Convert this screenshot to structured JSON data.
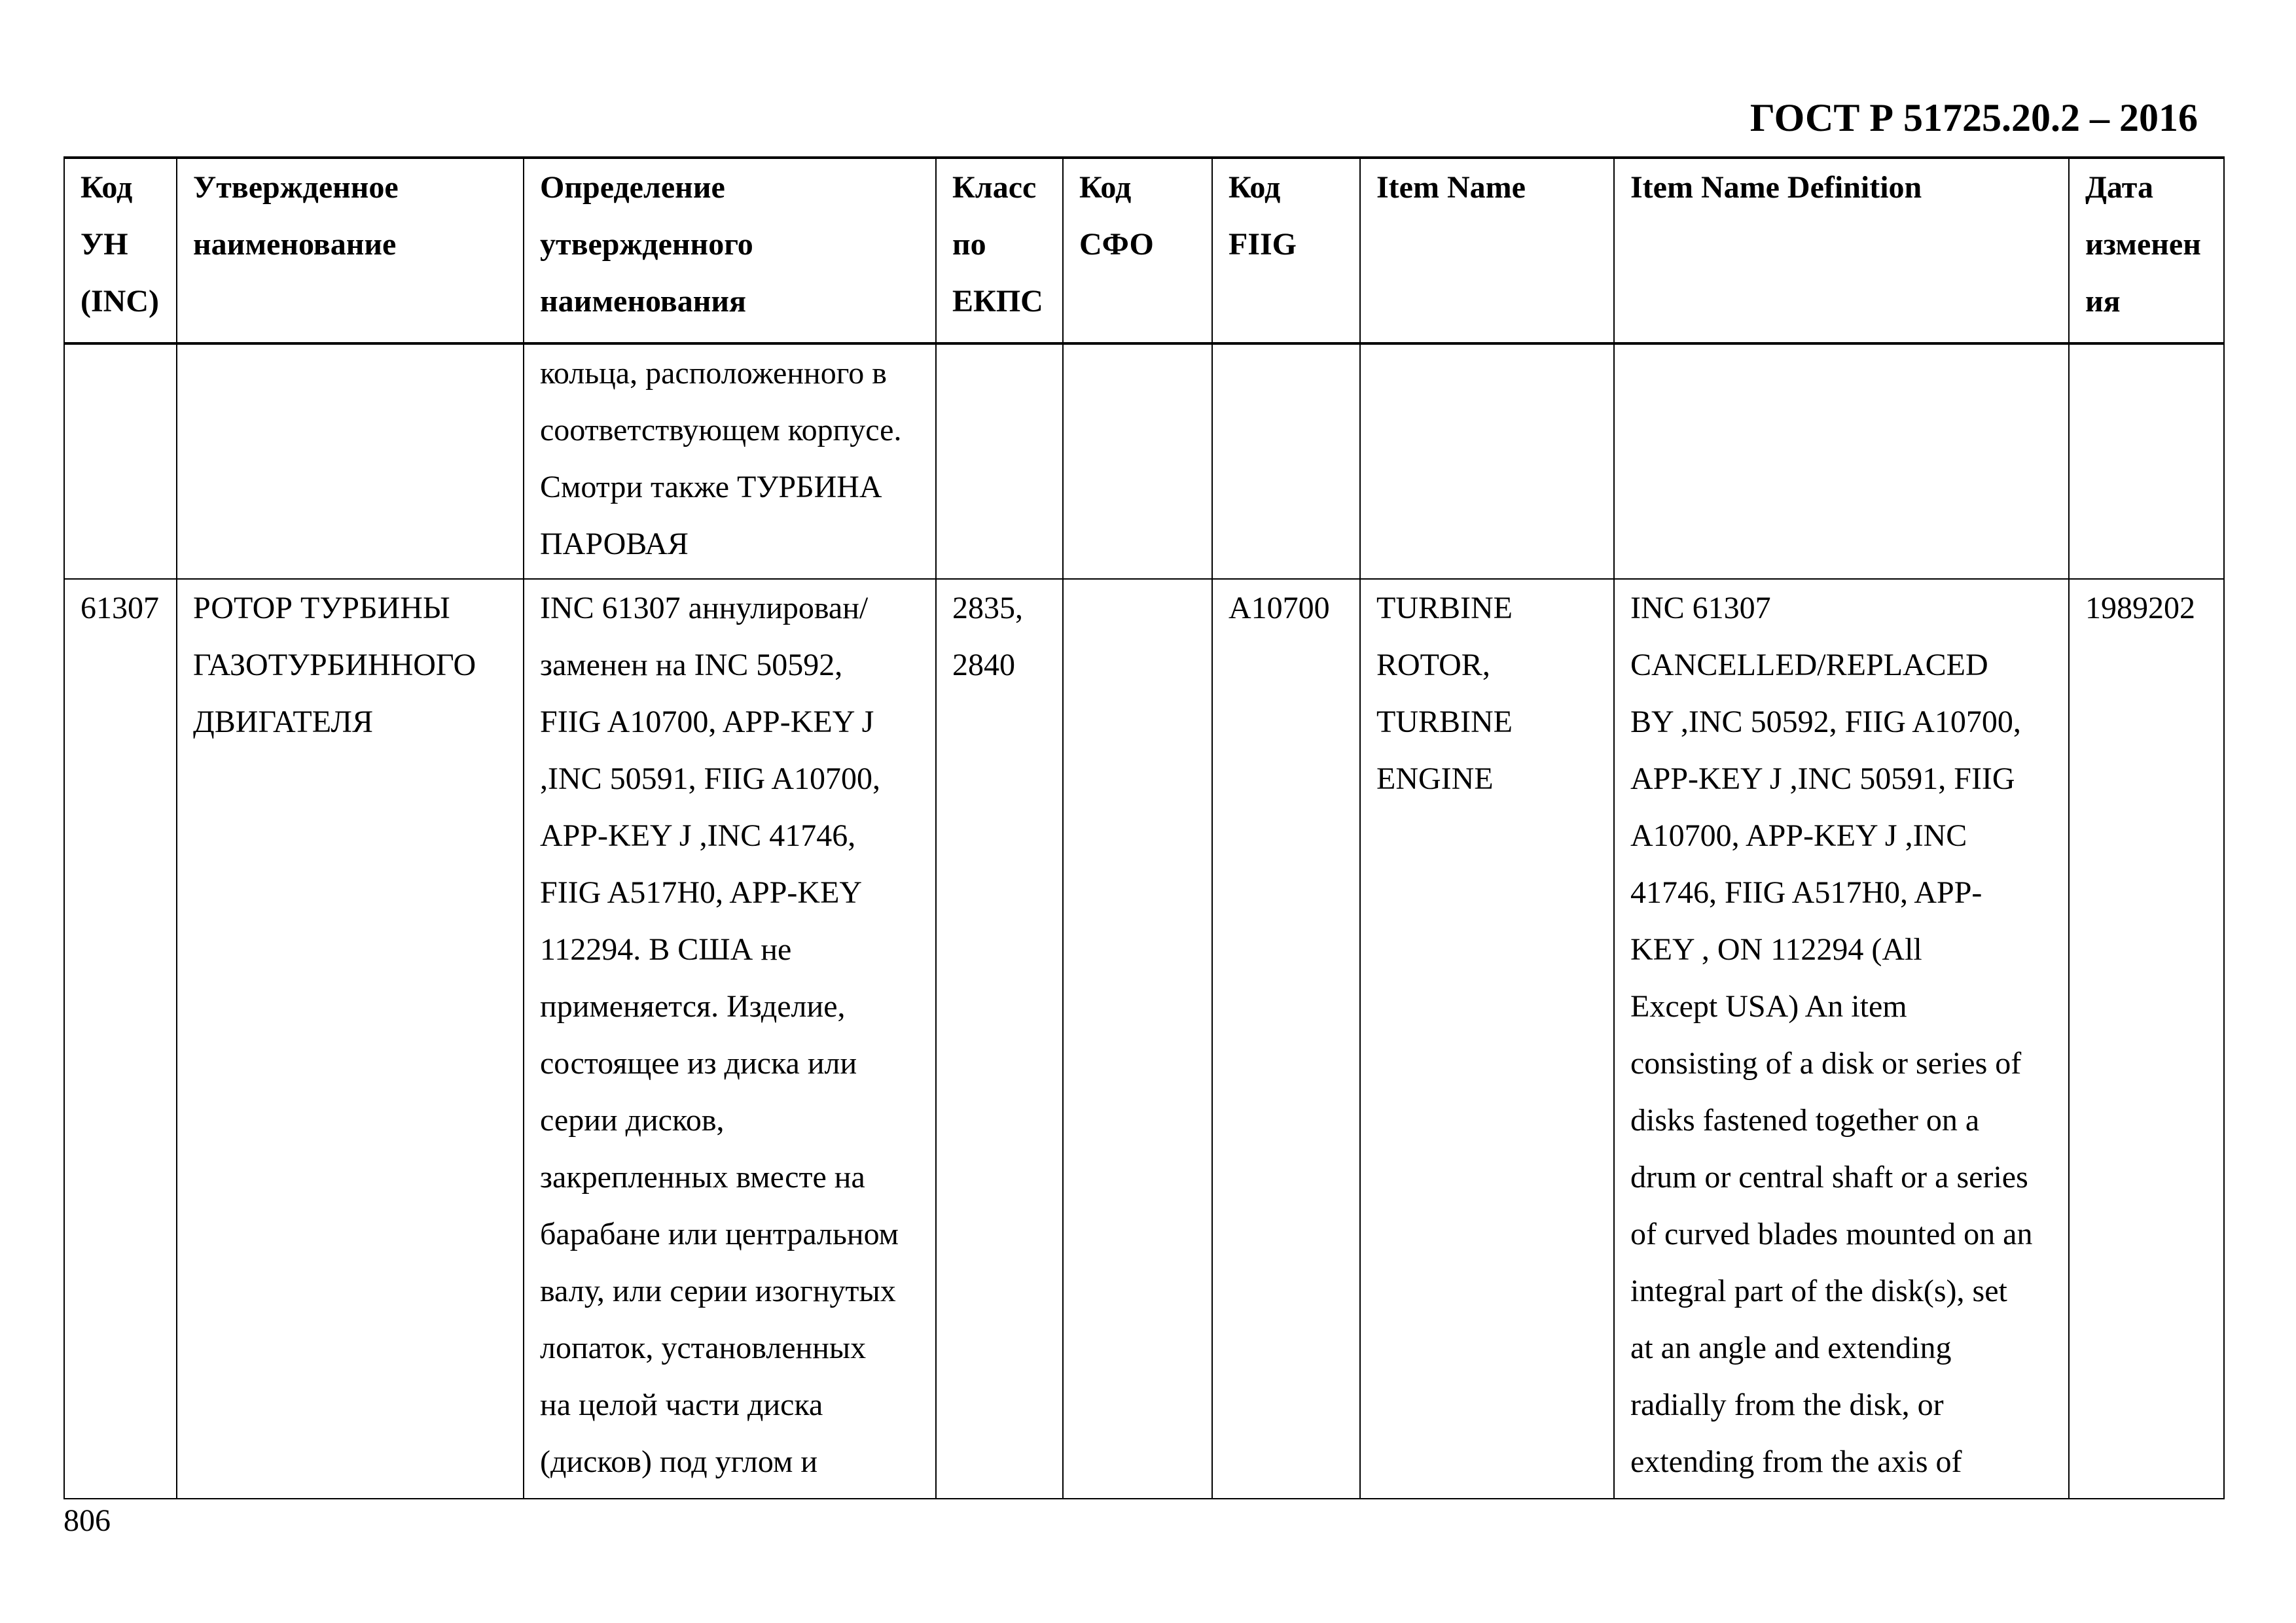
{
  "document": {
    "code": "ГОСТ Р 51725.20.2 – 2016",
    "page_number": "806"
  },
  "columns": [
    [
      "Код",
      "УН",
      "(INC)"
    ],
    [
      "Утвержденное",
      "наименование"
    ],
    [
      "Определение",
      "утвержденного",
      "наименования"
    ],
    [
      "Класс",
      "по",
      "ЕКПС"
    ],
    [
      "Код",
      "СФО"
    ],
    [
      "Код",
      "FIIG"
    ],
    [
      "Item Name"
    ],
    [
      "Item Name Definition"
    ],
    [
      "Дата",
      "изменен",
      "ия"
    ]
  ],
  "rows": [
    {
      "inc": [],
      "name": [],
      "definition": [
        "кольца, расположенного в",
        "соответствующем корпусе.",
        "Смотри также ТУРБИНА",
        "ПАРОВАЯ"
      ],
      "class": [],
      "sfo": [],
      "fiig": [],
      "item_name": [],
      "item_name_definition": [],
      "date": []
    },
    {
      "inc": [
        "61307"
      ],
      "name": [
        "РОТОР ТУРБИНЫ",
        "ГАЗОТУРБИННОГО",
        "ДВИГАТЕЛЯ"
      ],
      "definition": [
        "INC 61307 аннулирован/",
        "заменен на INC 50592,",
        "FIIG A10700, APP-KEY J",
        ",INC 50591, FIIG A10700,",
        "APP-KEY J ,INC 41746,",
        "FIIG A517H0, APP-KEY",
        "112294. В США не",
        "применяется. Изделие,",
        "состоящее из диска или",
        "серии дисков,",
        "закрепленных вместе на",
        "барабане или центральном",
        "валу, или серии изогнутых",
        "лопаток, установленных",
        "на целой части диска",
        "(дисков)  под углом и"
      ],
      "class": [
        "2835,",
        "2840"
      ],
      "sfo": [],
      "fiig": [
        "A10700"
      ],
      "item_name": [
        "TURBINE",
        "ROTOR,",
        "TURBINE",
        "ENGINE"
      ],
      "item_name_definition": [
        "INC 61307",
        "CANCELLED/REPLACED",
        "BY ,INC 50592, FIIG A10700,",
        "APP-KEY J  ,INC 50591, FIIG",
        "A10700, APP-KEY J  ,INC",
        "41746, FIIG A517H0, APP-",
        "KEY    , ON 112294 (All",
        "Except USA) An item",
        "consisting of a disk or series of",
        "disks fastened together on a",
        "drum or central shaft or a series",
        "of curved blades mounted on an",
        "integral part of the disk(s), set",
        "at an angle and extending",
        "radially from the disk, or",
        "extending from the axis of"
      ],
      "date": [
        "1989202"
      ]
    }
  ]
}
